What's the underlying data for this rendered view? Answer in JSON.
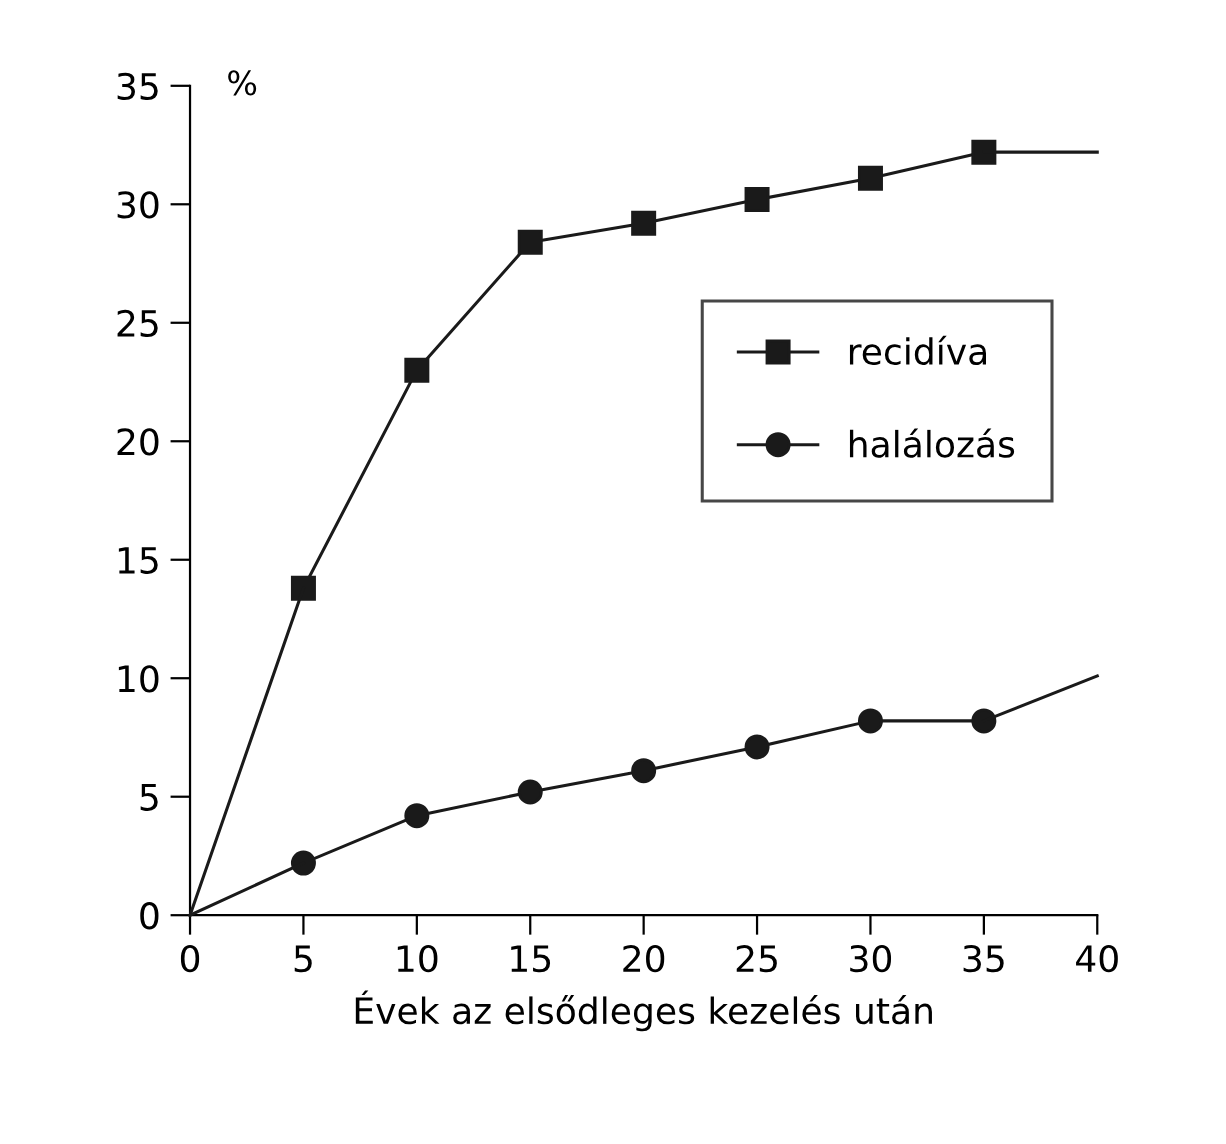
{
  "chart_data": {
    "type": "line",
    "xlabel": "Évek az elsődleges kezelés után",
    "ylabel": "%",
    "xlim": [
      0,
      40
    ],
    "ylim": [
      0,
      35
    ],
    "xticks": [
      0,
      5,
      10,
      15,
      20,
      25,
      30,
      35,
      40
    ],
    "yticks": [
      0,
      5,
      10,
      15,
      20,
      25,
      30,
      35
    ],
    "grid": false,
    "legend": "right",
    "line_style": "solid",
    "series": [
      {
        "name": "recidíva",
        "color": "#1a1a1a",
        "marker": "square",
        "x": [
          5,
          10,
          15,
          20,
          25,
          30,
          35
        ],
        "values": [
          13.8,
          23,
          28.4,
          29.2,
          30.2,
          31.1,
          32.2
        ]
      },
      {
        "name": "halálozás",
        "color": "#1a1a1a",
        "marker": "circle",
        "x": [
          5,
          10,
          15,
          20,
          25,
          30,
          35
        ],
        "values": [
          2.2,
          4.2,
          5.2,
          6.1,
          7.1,
          8.2,
          8.2
        ]
      },
      {
        "color": "#1a1a1a",
        "marker": "none",
        "x": [
          0,
          5
        ],
        "values": [
          0,
          13.8
        ]
      },
      {
        "color": "#1a1a1a",
        "marker": "none",
        "x": [
          35,
          40
        ],
        "values": [
          32.2,
          32.2
        ]
      },
      {
        "color": "#1a1a1a",
        "marker": "none",
        "x": [
          0,
          5
        ],
        "values": [
          0,
          2.2
        ]
      },
      {
        "color": "#1a1a1a",
        "marker": "none",
        "x": [
          35,
          40
        ],
        "values": [
          8.2,
          10.1
        ]
      }
    ]
  }
}
